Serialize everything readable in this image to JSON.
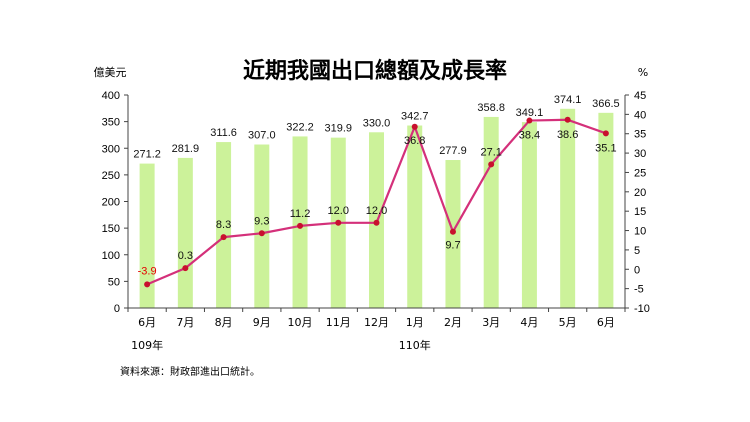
{
  "chart_data": {
    "type": "bar",
    "title": "近期我國出口總額及成長率",
    "left_unit": "億美元",
    "right_unit": "%",
    "categories": [
      "6月",
      "7月",
      "8月",
      "9月",
      "10月",
      "11月",
      "12月",
      "1月",
      "2月",
      "3月",
      "4月",
      "5月",
      "6月"
    ],
    "year_labels": [
      {
        "text": "109年",
        "at_index": 0
      },
      {
        "text": "110年",
        "at_index": 7
      }
    ],
    "series": [
      {
        "type": "bar",
        "axis": "left",
        "values": [
          271.2,
          281.9,
          311.6,
          307.0,
          322.2,
          319.9,
          330.0,
          342.7,
          277.9,
          358.8,
          349.1,
          374.1,
          366.5
        ],
        "labels": [
          "271.2",
          "281.9",
          "311.6",
          "307.0",
          "322.2",
          "319.9",
          "330.0",
          "342.7",
          "277.9",
          "358.8",
          "349.1",
          "374.1",
          "366.5"
        ],
        "color": "#ccf29a"
      },
      {
        "type": "line",
        "axis": "right",
        "values": [
          -3.9,
          0.3,
          8.3,
          9.3,
          11.2,
          12.0,
          12.0,
          36.8,
          9.7,
          27.1,
          38.4,
          38.6,
          35.1
        ],
        "labels": [
          "-3.9",
          "0.3",
          "8.3",
          "9.3",
          "11.2",
          "12.0",
          "12.0",
          "36.8",
          "9.7",
          "27.1",
          "38.4",
          "38.6",
          "35.1"
        ],
        "color": "#d4307a",
        "marker_color": "#c8102e"
      }
    ],
    "y_left": {
      "min": 0,
      "max": 400,
      "step": 50
    },
    "y_right": {
      "min": -10,
      "max": 45,
      "step": 5
    },
    "negative_color": "#e60000",
    "grid": false,
    "source": "資料來源：財政部進出口統計。"
  }
}
